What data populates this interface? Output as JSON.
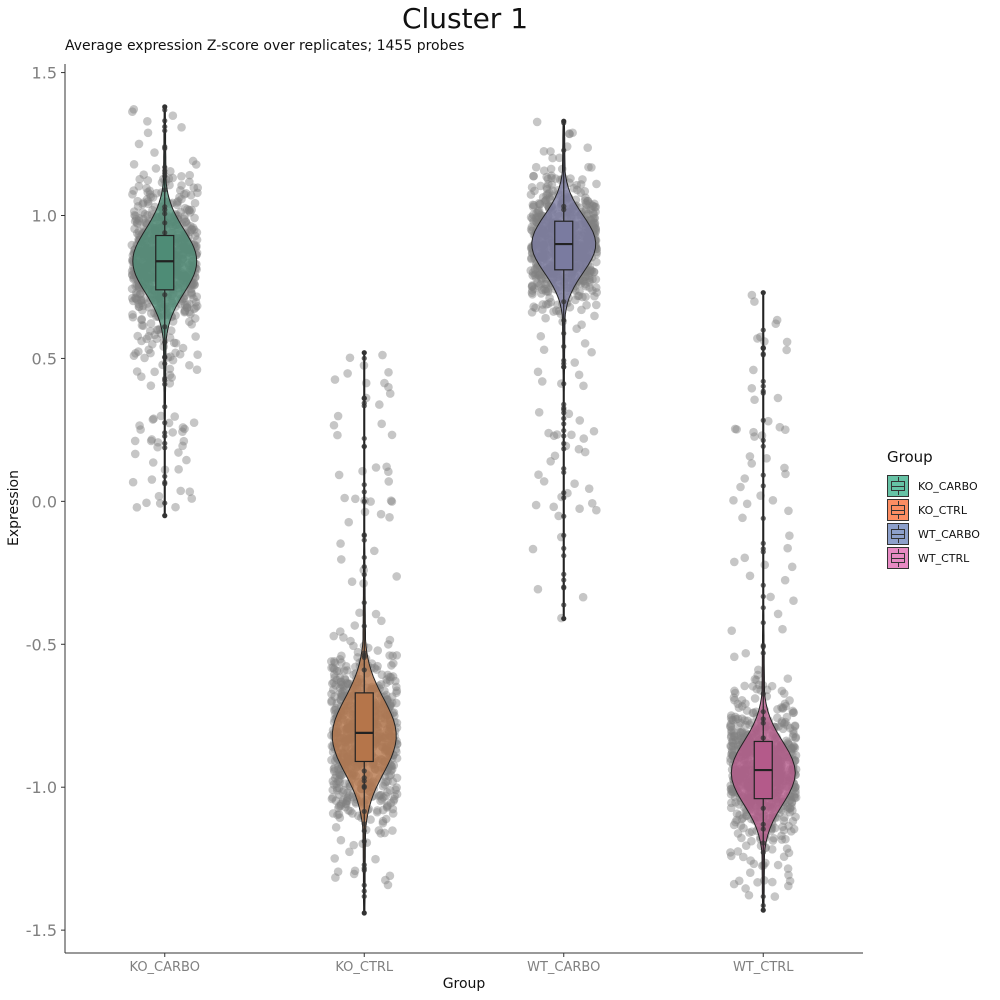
{
  "chart_data": {
    "type": "violin",
    "title": "Cluster 1",
    "subtitle": "Average expression Z-score over replicates; 1455 probes",
    "xlabel": "Group",
    "ylabel": "Expression",
    "ylim": [
      -1.58,
      1.53
    ],
    "yticks": [
      1.5,
      1.0,
      0.5,
      0.0,
      -0.5,
      -1.0,
      -1.5
    ],
    "ytick_labels": [
      "1.5",
      "1.0",
      "0.5",
      "0.0",
      "-0.5",
      "-1.0",
      "-1.5"
    ],
    "categories": [
      "KO_CARBO",
      "KO_CTRL",
      "WT_CARBO",
      "WT_CTRL"
    ],
    "legend_title": "Group",
    "legend_position": "right",
    "grid": false,
    "n_probes": 1455,
    "jitter_color": "#808080",
    "groups": [
      {
        "name": "KO_CARBO",
        "color": "#66C2A5",
        "fill": "#4E8C76",
        "box": {
          "min": -0.05,
          "q1": 0.74,
          "median": 0.84,
          "q3": 0.93,
          "max": 1.38
        },
        "violin_mode": 0.84,
        "violin_spread": 0.11
      },
      {
        "name": "KO_CTRL",
        "color": "#FC8D62",
        "fill": "#B5754A",
        "box": {
          "min": -1.44,
          "q1": -0.91,
          "median": -0.81,
          "q3": -0.67,
          "max": 0.52
        },
        "violin_mode": -0.82,
        "violin_spread": 0.13
      },
      {
        "name": "WT_CARBO",
        "color": "#8DA0CB",
        "fill": "#7A7BA0",
        "box": {
          "min": -0.41,
          "q1": 0.81,
          "median": 0.9,
          "q3": 0.98,
          "max": 1.33
        },
        "violin_mode": 0.9,
        "violin_spread": 0.1
      },
      {
        "name": "WT_CTRL",
        "color": "#E78AC3",
        "fill": "#B45A8A",
        "box": {
          "min": -1.43,
          "q1": -1.04,
          "median": -0.94,
          "q3": -0.84,
          "max": 0.73
        },
        "violin_mode": -0.95,
        "violin_spread": 0.11
      }
    ]
  }
}
